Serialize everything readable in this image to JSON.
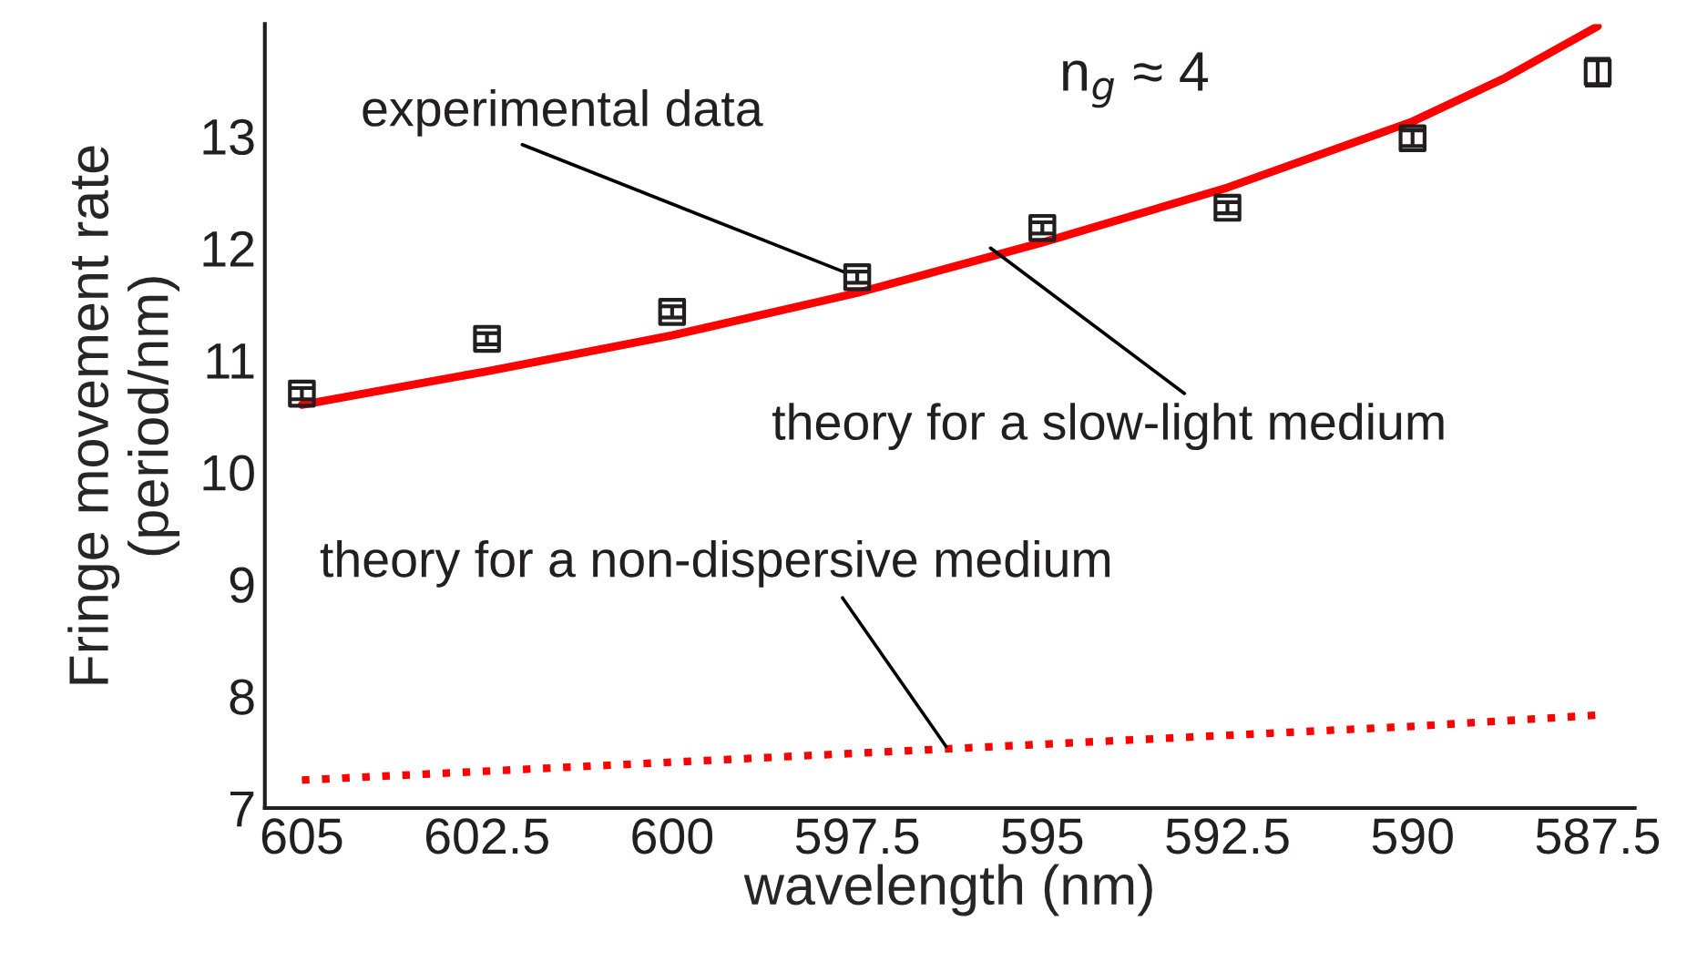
{
  "chart_data": {
    "type": "line",
    "xlabel": "wavelength (nm)",
    "ylabel": "Fringe movement rate\n(period/nm)",
    "xlim": [
      605.5,
      587
    ],
    "ylim": [
      7,
      14
    ],
    "xticks": [
      605,
      {
        "value": 602.5,
        "label": "602.5"
      },
      600,
      {
        "value": 597.5,
        "label": "597.5"
      },
      595,
      {
        "value": 592.5,
        "label": "592.5"
      },
      590,
      {
        "value": 587.5,
        "label": "587.5"
      }
    ],
    "yticks": [
      7,
      8,
      9,
      10,
      11,
      12,
      13
    ],
    "grid": false,
    "legend": false,
    "series": [
      {
        "type": "scatter",
        "marker": "square",
        "color": "#231f20",
        "x": [
          605,
          602.5,
          600,
          597.5,
          595,
          592.5,
          590,
          587.5
        ],
        "values": [
          10.7,
          11.19,
          11.43,
          11.74,
          12.18,
          12.36,
          12.98,
          13.57
        ],
        "errors": [
          0.05,
          0.05,
          0.05,
          0.05,
          0.05,
          0.05,
          0.07,
          0.12
        ]
      },
      {
        "type": "line",
        "line_style": "solid",
        "color": "#ff0000",
        "x": [
          605,
          602.5,
          600,
          597.5,
          595,
          592.5,
          590,
          588.75,
          587.5
        ],
        "values": [
          10.6,
          10.9,
          11.22,
          11.6,
          12.05,
          12.54,
          13.13,
          13.52,
          13.98
        ]
      },
      {
        "type": "line",
        "line_style": "dotted",
        "color": "#ff0000",
        "x": [
          605,
          600,
          595,
          590,
          587.5
        ],
        "values": [
          7.25,
          7.41,
          7.57,
          7.73,
          7.83
        ]
      }
    ],
    "annotations": [
      {
        "text": "experimental data",
        "x": 597.5,
        "y": 11.74
      },
      {
        "text": "theory for a slow-light medium",
        "x": 595.7,
        "y": 12.0
      },
      {
        "text": "theory for a non-dispersive medium",
        "x": 596.3,
        "y": 7.55
      },
      "n$_{g}$ ≈ 4"
    ]
  }
}
